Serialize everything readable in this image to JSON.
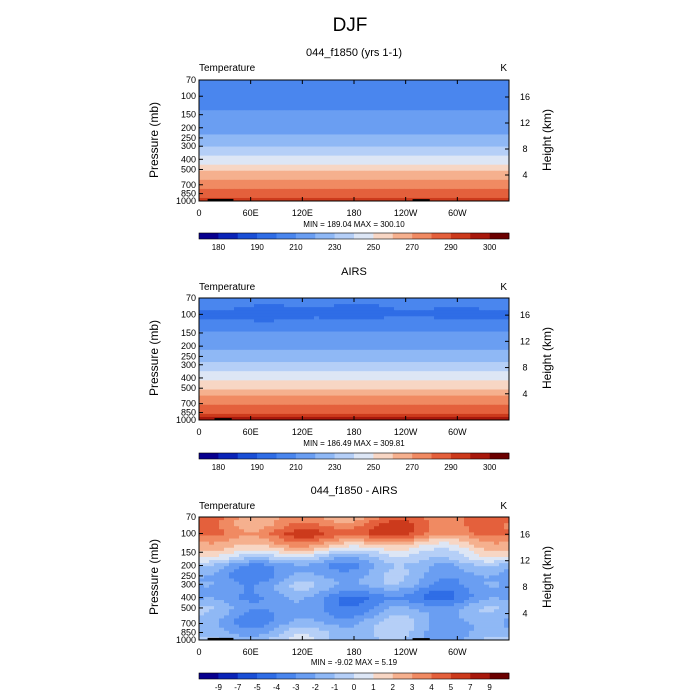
{
  "page_title": "DJF",
  "chart_data": [
    {
      "type": "heatmap",
      "title": "044_f1850 (yrs 1-1)",
      "variable_label": "Temperature",
      "units": "K",
      "ylabel": "Pressure (mb)",
      "ylabel_right": "Height (km)",
      "xticks": [
        "0",
        "60E",
        "120E",
        "180",
        "120W",
        "60W"
      ],
      "yticks": [
        "70",
        "100",
        "150",
        "200",
        "250",
        "300",
        "400",
        "500",
        "700",
        "850",
        "1000"
      ],
      "yticks_right": [
        "4",
        "8",
        "12",
        "16"
      ],
      "stats": "MIN = 189.04   MAX = 300.10",
      "colorbar_labels": [
        "180",
        "190",
        "210",
        "230",
        "250",
        "270",
        "290",
        "300"
      ],
      "colorbar_levels": [
        180,
        185,
        190,
        200,
        210,
        220,
        230,
        240,
        250,
        260,
        270,
        280,
        290,
        295,
        300
      ],
      "profile": [
        [
          1000,
          293
        ],
        [
          850,
          284
        ],
        [
          700,
          275
        ],
        [
          500,
          257
        ],
        [
          400,
          243
        ],
        [
          300,
          229
        ],
        [
          250,
          222
        ],
        [
          200,
          217
        ],
        [
          150,
          213
        ],
        [
          100,
          203
        ],
        [
          70,
          208
        ]
      ],
      "color_scale": [
        "#08008f",
        "#0a24b8",
        "#1a4fd6",
        "#2f6de6",
        "#4a86ee",
        "#6a9ef2",
        "#8fb8f5",
        "#b5cff7",
        "#dde6f5",
        "#f7d6c4",
        "#f5b08e",
        "#f08a62",
        "#e4603c",
        "#cc3a1c",
        "#a8180c",
        "#6b0000"
      ]
    },
    {
      "type": "heatmap",
      "title": "AIRS",
      "variable_label": "Temperature",
      "units": "K",
      "ylabel": "Pressure (mb)",
      "ylabel_right": "Height (km)",
      "xticks": [
        "0",
        "60E",
        "120E",
        "180",
        "120W",
        "60W"
      ],
      "yticks": [
        "70",
        "100",
        "150",
        "200",
        "250",
        "300",
        "400",
        "500",
        "700",
        "850",
        "1000"
      ],
      "yticks_right": [
        "4",
        "8",
        "12",
        "16"
      ],
      "stats": "MIN = 186.49   MAX = 309.81",
      "colorbar_labels": [
        "180",
        "190",
        "210",
        "230",
        "250",
        "270",
        "290",
        "300"
      ],
      "colorbar_levels": [
        180,
        185,
        190,
        200,
        210,
        220,
        230,
        240,
        250,
        260,
        270,
        280,
        290,
        295,
        300
      ],
      "profile": [
        [
          1000,
          297
        ],
        [
          850,
          288
        ],
        [
          700,
          278
        ],
        [
          500,
          260
        ],
        [
          400,
          246
        ],
        [
          300,
          231
        ],
        [
          250,
          224
        ],
        [
          200,
          218
        ],
        [
          150,
          212
        ],
        [
          100,
          197
        ],
        [
          70,
          205
        ]
      ],
      "color_scale": [
        "#08008f",
        "#0a24b8",
        "#1a4fd6",
        "#2f6de6",
        "#4a86ee",
        "#6a9ef2",
        "#8fb8f5",
        "#b5cff7",
        "#dde6f5",
        "#f7d6c4",
        "#f5b08e",
        "#f08a62",
        "#e4603c",
        "#cc3a1c",
        "#a8180c",
        "#6b0000"
      ]
    },
    {
      "type": "heatmap",
      "title": "044_f1850 - AIRS",
      "variable_label": "Temperature",
      "units": "K",
      "ylabel": "Pressure (mb)",
      "ylabel_right": "Height (km)",
      "xticks": [
        "0",
        "60E",
        "120E",
        "180",
        "120W",
        "60W"
      ],
      "yticks": [
        "70",
        "100",
        "150",
        "200",
        "250",
        "300",
        "400",
        "500",
        "700",
        "850",
        "1000"
      ],
      "yticks_right": [
        "4",
        "8",
        "12",
        "16"
      ],
      "stats": "MIN =  -9.02   MAX =    5.19",
      "colorbar_labels": [
        "-9",
        "-7",
        "-5",
        "-4",
        "-3",
        "-2",
        "-1",
        "0",
        "1",
        "2",
        "3",
        "4",
        "5",
        "7",
        "9"
      ],
      "colorbar_levels": [
        -9,
        -7,
        -5,
        -4,
        -3,
        -2,
        -1,
        0,
        1,
        2,
        3,
        4,
        5,
        7,
        9
      ],
      "profile": [
        [
          1000,
          -1.2
        ],
        [
          850,
          -1.5
        ],
        [
          700,
          -2
        ],
        [
          500,
          -2.4
        ],
        [
          400,
          -3.2
        ],
        [
          300,
          -2
        ],
        [
          250,
          -2.3
        ],
        [
          200,
          -2.2
        ],
        [
          150,
          0.5
        ],
        [
          100,
          4.5
        ],
        [
          70,
          3.5
        ]
      ],
      "color_scale": [
        "#08008f",
        "#0a24b8",
        "#1a4fd6",
        "#2f6de6",
        "#4a86ee",
        "#6a9ef2",
        "#8fb8f5",
        "#b5cff7",
        "#dde6f5",
        "#f7d6c4",
        "#f5b08e",
        "#f08a62",
        "#e4603c",
        "#cc3a1c",
        "#a8180c",
        "#6b0000"
      ]
    }
  ]
}
